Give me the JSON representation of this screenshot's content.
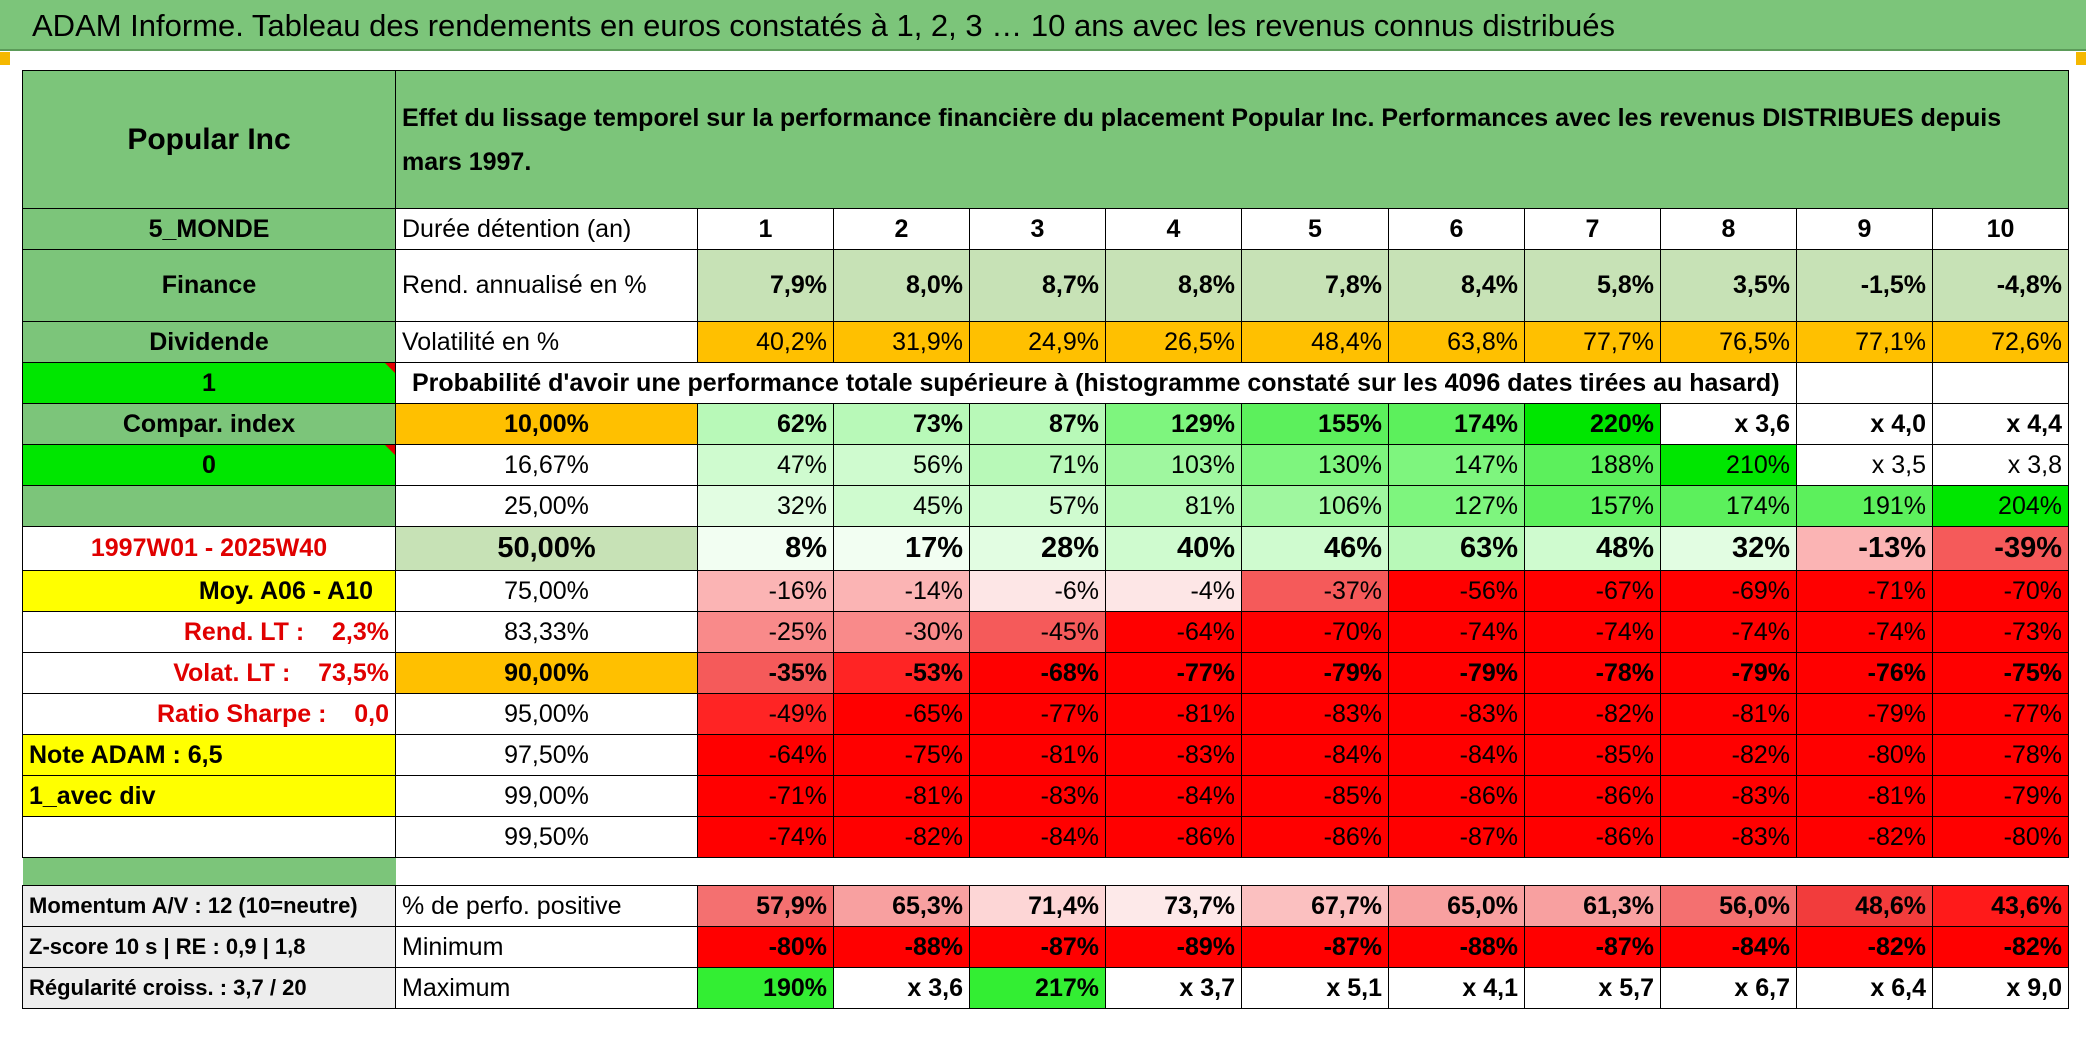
{
  "title": "ADAM Informe. Tableau des rendements en euros constatés à 1, 2, 3 … 10 ans avec les revenus connus distribués",
  "header": {
    "asset": "Popular Inc",
    "description": "Effet du lissage temporel sur la performance financière du placement Popular Inc. Performances avec les revenus DISTRIBUES depuis mars 1997."
  },
  "left_panel": {
    "zone": "5_MONDE",
    "sector": "Finance",
    "type": "Dividende",
    "flag1": "1",
    "compar_label": "Compar. index",
    "flag0": "0",
    "period": "1997W01 - 2025W40",
    "moy": "Moy. A06 - A10",
    "rend_lt": "Rend. LT :    2,3%",
    "volat_lt": "Volat. LT :    73,5%",
    "sharpe": "Ratio Sharpe :    0,0",
    "note": "Note ADAM : 6,5",
    "avec_div": "1_avec div"
  },
  "table": {
    "duration_label": "Durée détention (an)",
    "years": [
      "1",
      "2",
      "3",
      "4",
      "5",
      "6",
      "7",
      "8",
      "9",
      "10"
    ],
    "rend_label": "Rend. annualisé en %",
    "rend": [
      "7,9%",
      "8,0%",
      "8,7%",
      "8,8%",
      "7,8%",
      "8,4%",
      "5,8%",
      "3,5%",
      "-1,5%",
      "-4,8%"
    ],
    "vol_label": "Volatilité en %",
    "vol": [
      "40,2%",
      "31,9%",
      "24,9%",
      "26,5%",
      "48,4%",
      "63,8%",
      "77,7%",
      "76,5%",
      "77,1%",
      "72,6%"
    ],
    "prob_header": "Probabilité d'avoir une performance totale supérieure à (histogramme constaté sur les 4096 dates tirées au hasard)",
    "prob_rows": [
      {
        "label": "10,00%",
        "values": [
          "62%",
          "73%",
          "87%",
          "129%",
          "155%",
          "174%",
          "220%",
          "x 3,6",
          "x 4,0",
          "x 4,4"
        ]
      },
      {
        "label": "16,67%",
        "values": [
          "47%",
          "56%",
          "71%",
          "103%",
          "130%",
          "147%",
          "188%",
          "210%",
          "x 3,5",
          "x 3,8"
        ]
      },
      {
        "label": "25,00%",
        "values": [
          "32%",
          "45%",
          "57%",
          "81%",
          "106%",
          "127%",
          "157%",
          "174%",
          "191%",
          "204%"
        ]
      },
      {
        "label": "50,00%",
        "values": [
          "8%",
          "17%",
          "28%",
          "40%",
          "46%",
          "63%",
          "48%",
          "32%",
          "-13%",
          "-39%"
        ]
      },
      {
        "label": "75,00%",
        "values": [
          "-16%",
          "-14%",
          "-6%",
          "-4%",
          "-37%",
          "-56%",
          "-67%",
          "-69%",
          "-71%",
          "-70%"
        ]
      },
      {
        "label": "83,33%",
        "values": [
          "-25%",
          "-30%",
          "-45%",
          "-64%",
          "-70%",
          "-74%",
          "-74%",
          "-74%",
          "-74%",
          "-73%"
        ]
      },
      {
        "label": "90,00%",
        "values": [
          "-35%",
          "-53%",
          "-68%",
          "-77%",
          "-79%",
          "-79%",
          "-78%",
          "-79%",
          "-76%",
          "-75%"
        ]
      },
      {
        "label": "95,00%",
        "values": [
          "-49%",
          "-65%",
          "-77%",
          "-81%",
          "-83%",
          "-83%",
          "-82%",
          "-81%",
          "-79%",
          "-77%"
        ]
      },
      {
        "label": "97,50%",
        "values": [
          "-64%",
          "-75%",
          "-81%",
          "-83%",
          "-84%",
          "-84%",
          "-85%",
          "-82%",
          "-80%",
          "-78%"
        ]
      },
      {
        "label": "99,00%",
        "values": [
          "-71%",
          "-81%",
          "-83%",
          "-84%",
          "-85%",
          "-86%",
          "-86%",
          "-83%",
          "-81%",
          "-79%"
        ]
      },
      {
        "label": "99,50%",
        "values": [
          "-74%",
          "-82%",
          "-84%",
          "-86%",
          "-86%",
          "-87%",
          "-86%",
          "-83%",
          "-82%",
          "-80%"
        ]
      }
    ],
    "stats": [
      {
        "left": "Momentum A/V : 12 (10=neutre)",
        "label": "% de perfo. positive",
        "values": [
          "57,9%",
          "65,3%",
          "71,4%",
          "73,7%",
          "67,7%",
          "65,0%",
          "61,3%",
          "56,0%",
          "48,6%",
          "43,6%"
        ]
      },
      {
        "left": "Z-score 10 s | RE : 0,9 | 1,8",
        "label": "Minimum",
        "values": [
          "-80%",
          "-88%",
          "-87%",
          "-89%",
          "-87%",
          "-88%",
          "-87%",
          "-84%",
          "-82%",
          "-82%"
        ]
      },
      {
        "left": "Régularité croiss. : 3,7 / 20",
        "label": "Maximum",
        "values": [
          "190%",
          "x 3,6",
          "217%",
          "x 3,7",
          "x 5,1",
          "x 4,1",
          "x 5,7",
          "x 6,7",
          "x 6,4",
          "x 9,0"
        ]
      }
    ]
  },
  "colors": {
    "header_green": "#7cc57a",
    "light_green": "#c7e2b6",
    "orange": "#ffc000",
    "bright_green": "#00e600",
    "yellow": "#ffff00",
    "red": "#ff0000"
  }
}
